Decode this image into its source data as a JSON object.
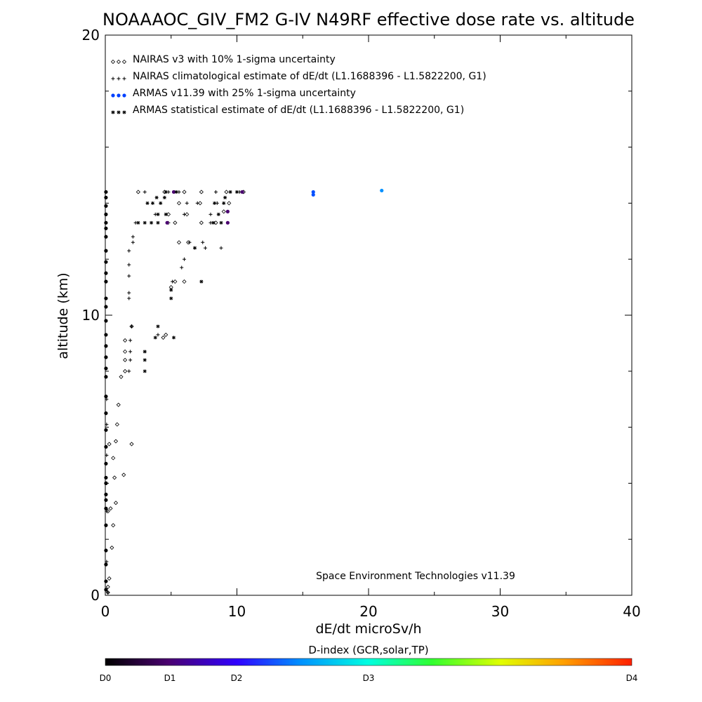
{
  "chart_data": {
    "type": "scatter",
    "title": "NOAAAOC_GIV_FM2 G-IV   N49RF  effective dose rate vs. altitude",
    "xlabel": "dE/dt microSv/h",
    "ylabel": "altitude (km)",
    "xlim": [
      0,
      40
    ],
    "ylim": [
      0,
      20
    ],
    "x_ticks": [
      0,
      10,
      20,
      30,
      40
    ],
    "y_ticks": [
      0,
      10,
      20
    ],
    "grid": false,
    "legend_position": "top-left",
    "credit": "Space Environment Technologies v11.39",
    "colorbar": {
      "label": "D-index (GCR,solar,TP)",
      "ticks": [
        {
          "label": "D0",
          "value": 0
        },
        {
          "label": "D1",
          "value": 1
        },
        {
          "label": "D2",
          "value": 2
        },
        {
          "label": "D3",
          "value": 3
        },
        {
          "label": "D4",
          "value": 4
        }
      ],
      "stops": [
        {
          "pos": 0.0,
          "color": "#000000"
        },
        {
          "pos": 0.12,
          "color": "#4a0070"
        },
        {
          "pos": 0.25,
          "color": "#3000ff"
        },
        {
          "pos": 0.37,
          "color": "#0090ff"
        },
        {
          "pos": 0.5,
          "color": "#00ffe0"
        },
        {
          "pos": 0.62,
          "color": "#30ff30"
        },
        {
          "pos": 0.75,
          "color": "#e0ff00"
        },
        {
          "pos": 0.87,
          "color": "#ffa000"
        },
        {
          "pos": 1.0,
          "color": "#ff2000"
        }
      ]
    },
    "series": [
      {
        "name": "NAIRAS v3 with 10% 1-sigma uncertainty",
        "marker": "diamond",
        "color": "#000000",
        "points": [
          [
            0.2,
            0.1
          ],
          [
            0.2,
            0.3
          ],
          [
            0.3,
            0.6
          ],
          [
            0.5,
            1.7
          ],
          [
            0.6,
            2.5
          ],
          [
            0.2,
            3.0
          ],
          [
            0.4,
            3.1
          ],
          [
            0.8,
            3.3
          ],
          [
            0.7,
            4.2
          ],
          [
            1.4,
            4.3
          ],
          [
            0.6,
            4.9
          ],
          [
            0.3,
            5.4
          ],
          [
            0.8,
            5.5
          ],
          [
            2.0,
            5.4
          ],
          [
            0.9,
            6.1
          ],
          [
            1.0,
            6.8
          ],
          [
            1.2,
            7.8
          ],
          [
            1.5,
            8.0
          ],
          [
            1.5,
            8.4
          ],
          [
            1.5,
            8.7
          ],
          [
            1.5,
            9.1
          ],
          [
            2.0,
            9.6
          ],
          [
            4.4,
            9.2
          ],
          [
            4.6,
            9.3
          ],
          [
            5.0,
            11.0
          ],
          [
            5.3,
            11.2
          ],
          [
            6.0,
            11.2
          ],
          [
            5.6,
            12.6
          ],
          [
            6.3,
            12.6
          ],
          [
            2.5,
            14.4
          ],
          [
            4.5,
            14.4
          ],
          [
            6.0,
            14.4
          ],
          [
            7.3,
            14.4
          ],
          [
            9.2,
            14.4
          ],
          [
            10.5,
            14.4
          ],
          [
            5.6,
            14.0
          ],
          [
            7.2,
            14.0
          ],
          [
            4.8,
            13.6
          ],
          [
            6.2,
            13.6
          ],
          [
            5.3,
            13.3
          ],
          [
            7.3,
            13.3
          ],
          [
            8.4,
            13.3
          ],
          [
            9.0,
            13.7
          ],
          [
            9.4,
            14.0
          ]
        ]
      },
      {
        "name": "NAIRAS climatological estimate of dE/dt (L1.1688396 - L1.5822200, G1)",
        "marker": "plus",
        "color": "#000000",
        "points": [
          [
            0.2,
            0.1
          ],
          [
            0.1,
            1.2
          ],
          [
            0.1,
            3.0
          ],
          [
            0.1,
            4.0
          ],
          [
            0.1,
            5.0
          ],
          [
            0.1,
            6.1
          ],
          [
            0.1,
            7.0
          ],
          [
            1.8,
            8.0
          ],
          [
            1.9,
            8.4
          ],
          [
            1.9,
            8.7
          ],
          [
            1.9,
            9.1
          ],
          [
            2.0,
            9.6
          ],
          [
            1.8,
            10.6
          ],
          [
            1.8,
            10.8
          ],
          [
            1.8,
            11.4
          ],
          [
            1.8,
            11.8
          ],
          [
            1.8,
            12.3
          ],
          [
            2.1,
            12.6
          ],
          [
            2.1,
            12.8
          ],
          [
            2.3,
            13.3
          ],
          [
            4.0,
            9.3
          ],
          [
            5.1,
            11.2
          ],
          [
            5.8,
            11.7
          ],
          [
            6.0,
            12.0
          ],
          [
            6.4,
            12.6
          ],
          [
            7.4,
            12.6
          ],
          [
            7.6,
            12.4
          ],
          [
            8.8,
            12.4
          ],
          [
            3.0,
            14.4
          ],
          [
            4.8,
            14.4
          ],
          [
            5.6,
            14.4
          ],
          [
            8.4,
            14.4
          ],
          [
            10.2,
            14.4
          ],
          [
            6.2,
            14.0
          ],
          [
            7.0,
            14.0
          ],
          [
            8.5,
            14.0
          ],
          [
            3.8,
            13.6
          ],
          [
            6.0,
            13.6
          ],
          [
            8.0,
            13.6
          ],
          [
            4.8,
            13.3
          ],
          [
            8.0,
            13.3
          ]
        ]
      },
      {
        "name": "ARMAS v11.39 with 25% 1-sigma uncertainty",
        "marker": "dot",
        "points": [
          [
            0.05,
            0.2
          ],
          [
            0.05,
            0.5
          ],
          [
            0.05,
            1.1
          ],
          [
            0.05,
            1.6
          ],
          [
            0.05,
            2.5
          ],
          [
            0.05,
            3.1
          ],
          [
            0.05,
            3.4
          ],
          [
            0.05,
            3.6
          ],
          [
            0.05,
            4.0
          ],
          [
            0.05,
            4.2
          ],
          [
            0.05,
            4.7
          ],
          [
            0.05,
            5.3
          ],
          [
            0.05,
            5.9
          ],
          [
            0.05,
            6.5
          ],
          [
            0.05,
            7.1
          ],
          [
            0.05,
            7.8
          ],
          [
            0.05,
            8.1
          ],
          [
            0.05,
            8.5
          ],
          [
            0.05,
            8.9
          ],
          [
            0.05,
            9.3
          ],
          [
            0.05,
            9.8
          ],
          [
            0.05,
            10.3
          ],
          [
            0.05,
            10.6
          ],
          [
            0.05,
            11.2
          ],
          [
            0.05,
            11.5
          ],
          [
            0.05,
            11.9
          ],
          [
            0.05,
            12.3
          ],
          [
            0.05,
            12.8
          ],
          [
            0.05,
            13.1
          ],
          [
            0.05,
            13.3
          ],
          [
            0.05,
            13.6
          ],
          [
            0.05,
            13.9
          ],
          [
            0.05,
            14.2
          ],
          [
            0.05,
            14.4
          ],
          {
            "x": 4.7,
            "y": 13.3,
            "color": "#4a0070"
          },
          {
            "x": 9.3,
            "y": 13.3,
            "color": "#4a0070"
          },
          {
            "x": 9.3,
            "y": 13.7,
            "color": "#4a0070"
          },
          {
            "x": 5.2,
            "y": 14.4,
            "color": "#4a0070"
          },
          {
            "x": 10.4,
            "y": 14.4,
            "color": "#4a0070"
          },
          {
            "x": 15.8,
            "y": 14.4,
            "color": "#0050ff"
          },
          {
            "x": 15.8,
            "y": 14.3,
            "color": "#0050ff"
          },
          {
            "x": 21.0,
            "y": 14.45,
            "color": "#0090ff"
          }
        ]
      },
      {
        "name": "ARMAS statistical estimate of dE/dt (L1.1688396 - L1.5822200, G1)",
        "marker": "asterisk",
        "color": "#000000",
        "points": [
          [
            3.0,
            8.0
          ],
          [
            3.0,
            8.4
          ],
          [
            3.0,
            8.7
          ],
          [
            4.0,
            9.6
          ],
          [
            3.8,
            9.2
          ],
          [
            5.2,
            9.2
          ],
          [
            5.0,
            10.6
          ],
          [
            5.0,
            10.9
          ],
          [
            7.3,
            11.2
          ],
          [
            6.8,
            12.4
          ],
          [
            2.5,
            13.3
          ],
          [
            3.0,
            13.3
          ],
          [
            3.5,
            13.3
          ],
          [
            4.0,
            13.3
          ],
          [
            8.2,
            13.3
          ],
          [
            8.8,
            13.3
          ],
          [
            4.0,
            13.6
          ],
          [
            4.6,
            13.6
          ],
          [
            8.6,
            13.6
          ],
          [
            3.2,
            14.0
          ],
          [
            3.6,
            14.0
          ],
          [
            4.2,
            14.0
          ],
          [
            8.3,
            14.0
          ],
          [
            9.0,
            14.0
          ],
          [
            3.9,
            14.2
          ],
          [
            4.5,
            14.2
          ],
          [
            9.1,
            14.2
          ],
          [
            4.6,
            14.4
          ],
          [
            5.4,
            14.4
          ],
          [
            9.5,
            14.4
          ],
          [
            10.0,
            14.4
          ]
        ]
      }
    ]
  }
}
